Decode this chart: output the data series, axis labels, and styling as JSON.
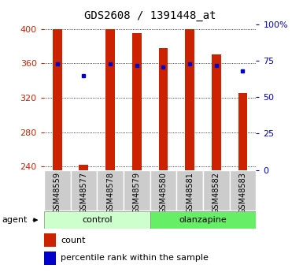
{
  "title": "GDS2608 / 1391448_at",
  "samples": [
    "GSM48559",
    "GSM48577",
    "GSM48578",
    "GSM48579",
    "GSM48580",
    "GSM48581",
    "GSM48582",
    "GSM48583"
  ],
  "counts": [
    400,
    242,
    400,
    395,
    378,
    400,
    370,
    325
  ],
  "percentiles": [
    73,
    65,
    73,
    72,
    71,
    73,
    72,
    68
  ],
  "bar_color": "#cc2200",
  "dot_color": "#0000cc",
  "ylim_left": [
    236,
    405
  ],
  "ylim_right": [
    0,
    100
  ],
  "yticks_left": [
    240,
    280,
    320,
    360,
    400
  ],
  "yticks_right": [
    0,
    25,
    50,
    75,
    100
  ],
  "ytick_labels_right": [
    "0",
    "25",
    "50",
    "75",
    "100%"
  ],
  "bar_width": 0.35,
  "background_color": "#ffffff",
  "grid_color": "#000000",
  "left_tick_color": "#cc2200",
  "right_tick_color": "#0000cc",
  "legend_count_label": "count",
  "legend_pct_label": "percentile rank within the sample",
  "agent_label": "agent",
  "control_label": "control",
  "olanzapine_label": "olanzapine",
  "control_color": "#ccffcc",
  "olanzapine_color": "#66ee66",
  "label_bg_color": "#cccccc",
  "label_edge_color": "#ffffff"
}
